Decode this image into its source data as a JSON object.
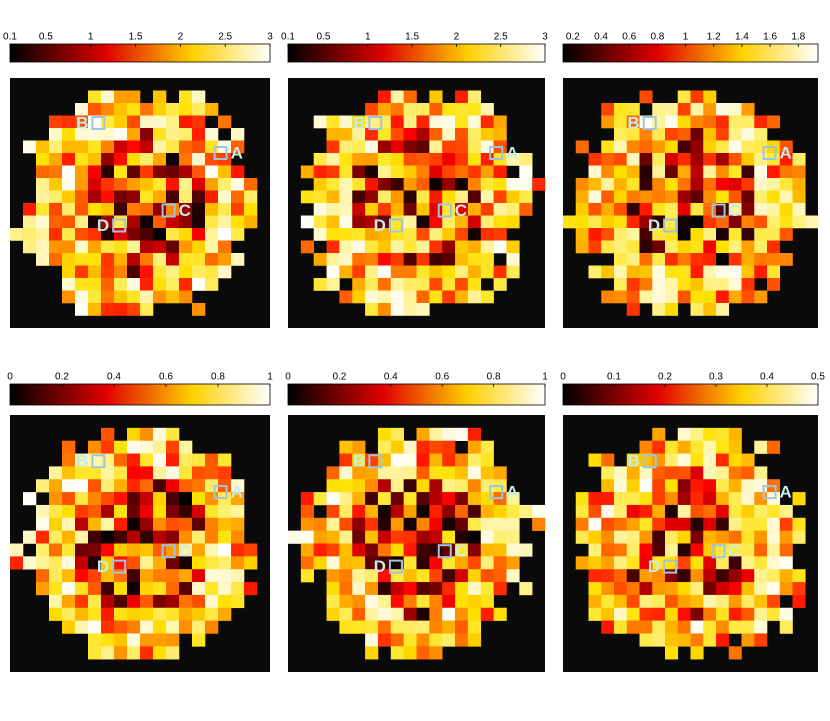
{
  "panels": [
    {
      "colorbar": {
        "lim": [
          0.1,
          3
        ],
        "ticks": [
          0.1,
          0.5,
          1,
          1.5,
          2,
          2.5,
          3
        ]
      },
      "markers": [
        "A",
        "B",
        "C",
        "D"
      ]
    },
    {
      "colorbar": {
        "lim": [
          0.1,
          3
        ],
        "ticks": [
          0.1,
          0.5,
          1,
          1.5,
          2,
          2.5,
          3
        ]
      },
      "markers": [
        "A",
        "B",
        "C",
        "D"
      ]
    },
    {
      "colorbar": {
        "lim": [
          0.13,
          1.94
        ],
        "ticks": [
          0.2,
          0.4,
          0.6,
          0.8,
          1,
          1.2,
          1.4,
          1.6,
          1.8
        ]
      },
      "markers": [
        "A",
        "B",
        "C",
        "D"
      ]
    },
    {
      "colorbar": {
        "lim": [
          0,
          1
        ],
        "ticks": [
          0,
          0.2,
          0.4,
          0.6,
          0.8,
          1
        ]
      },
      "markers": [
        "A",
        "B",
        "C",
        "D"
      ]
    },
    {
      "colorbar": {
        "lim": [
          0,
          1
        ],
        "ticks": [
          0,
          0.2,
          0.4,
          0.6,
          0.8,
          1
        ]
      },
      "markers": [
        "A",
        "B",
        "C",
        "D"
      ]
    },
    {
      "colorbar": {
        "lim": [
          0,
          0.5
        ],
        "ticks": [
          0,
          0.1,
          0.2,
          0.3,
          0.4,
          0.5
        ]
      },
      "markers": [
        "A",
        "B",
        "C",
        "D"
      ]
    }
  ]
}
